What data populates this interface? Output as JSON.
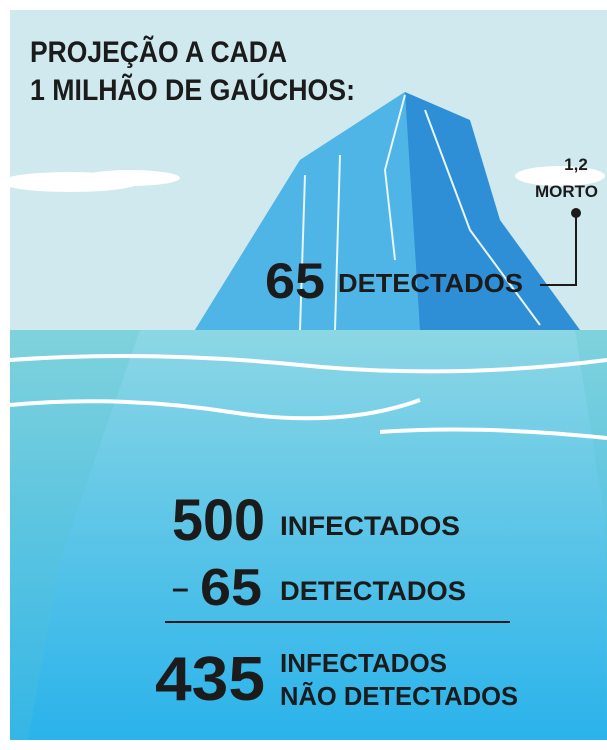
{
  "title": {
    "line1": "PROJEÇÃO A CADA",
    "line2": "1 MILHÃO DE GAÚCHOS:"
  },
  "deaths": {
    "number": "1,2",
    "label": "MORTO"
  },
  "tip": {
    "number": 65,
    "label": "DETECTADOS"
  },
  "calculation": {
    "infected": {
      "number": 500,
      "label": "INFECTADOS"
    },
    "minus": {
      "sign": "–",
      "number": 65,
      "label": "DETECTADOS"
    },
    "result": {
      "number": 435,
      "label_line1": "INFECTADOS",
      "label_line2": "NÃO DETECTADOS"
    }
  }
}
